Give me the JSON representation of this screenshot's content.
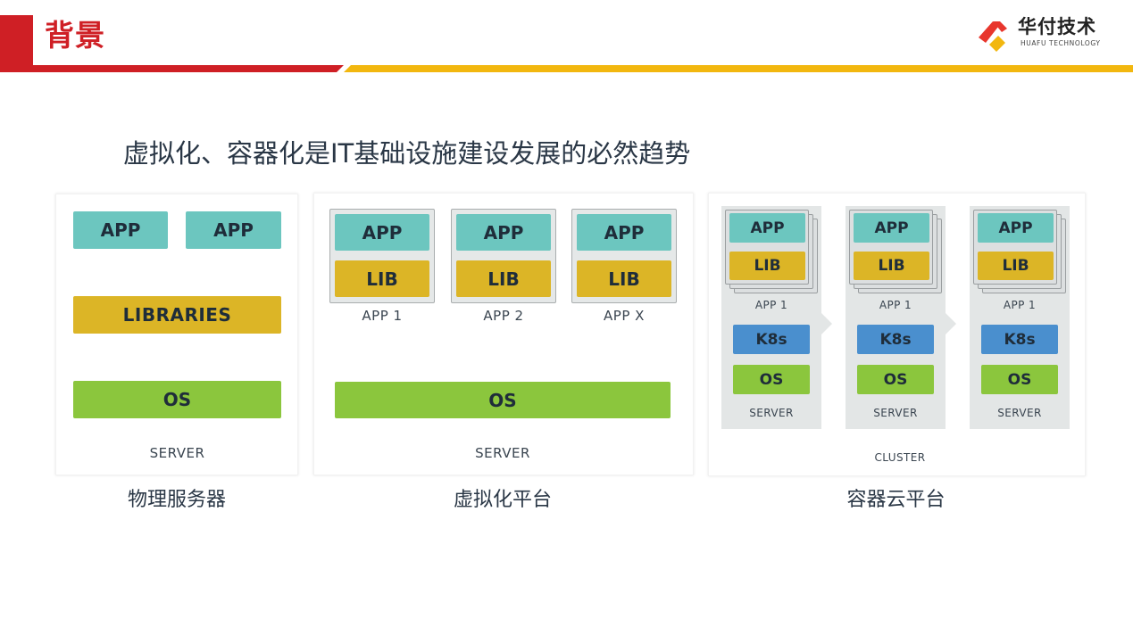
{
  "header": {
    "title": "背景",
    "logo_cn": "华付技术",
    "logo_en": "HUAFU TECHNOLOGY",
    "colors": {
      "red": "#cf1f25",
      "gold": "#f2b70f"
    }
  },
  "subtitle": "虚拟化、容器化是IT基础设施建设发展的必然趋势",
  "physical": {
    "app1": "APP",
    "app2": "APP",
    "libraries": "LIBRARIES",
    "os": "OS",
    "server": "SERVER",
    "caption": "物理服务器"
  },
  "virtual": {
    "vms": [
      {
        "app": "APP",
        "lib": "LIB",
        "label": "APP 1"
      },
      {
        "app": "APP",
        "lib": "LIB",
        "label": "APP 2"
      },
      {
        "app": "APP",
        "lib": "LIB",
        "label": "APP X"
      }
    ],
    "os": "OS",
    "server": "SERVER",
    "caption": "虚拟化平台"
  },
  "container": {
    "servers": [
      {
        "app": "APP",
        "lib": "LIB",
        "label": "APP 1",
        "k8s": "K8s",
        "os": "OS",
        "server": "SERVER"
      },
      {
        "app": "APP",
        "lib": "LIB",
        "label": "APP 1",
        "k8s": "K8s",
        "os": "OS",
        "server": "SERVER"
      },
      {
        "app": "APP",
        "lib": "LIB",
        "label": "APP 1",
        "k8s": "K8s",
        "os": "OS",
        "server": "SERVER"
      }
    ],
    "cluster": "CLUSTER",
    "caption": "容器云平台"
  }
}
